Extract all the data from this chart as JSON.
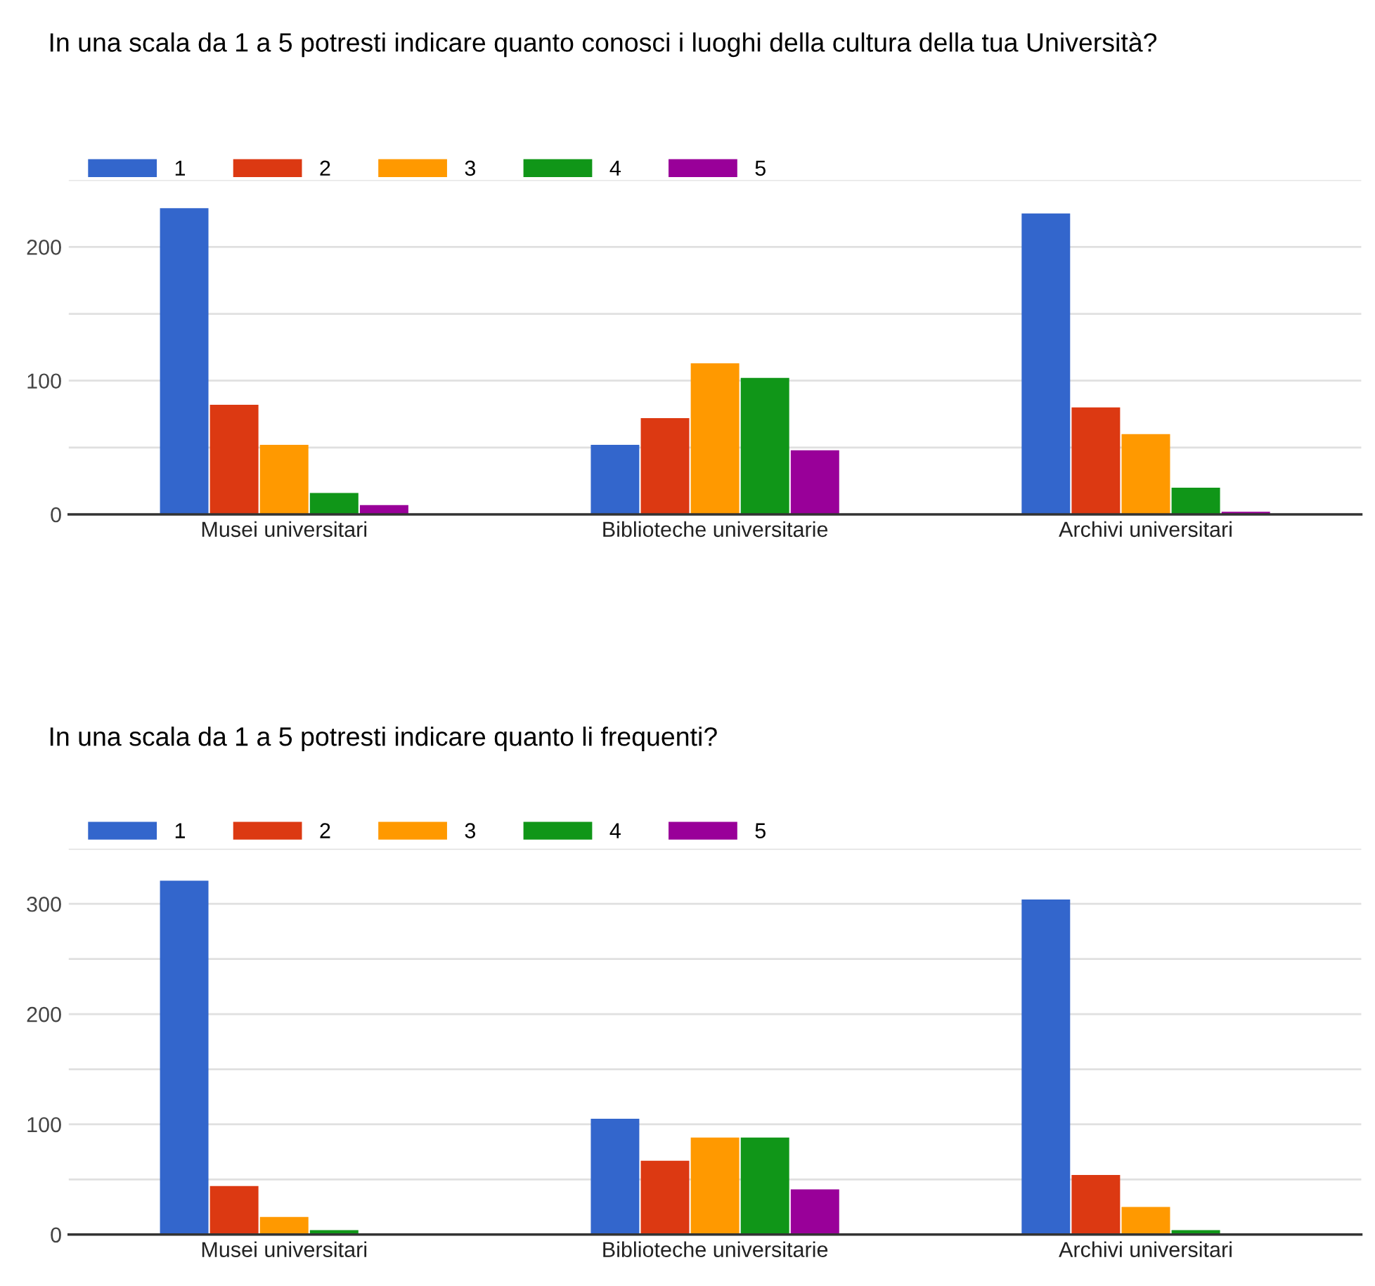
{
  "chart_data": [
    {
      "type": "bar",
      "title": "In una scala da 1 a 5 potresti indicare quanto conosci i luoghi della cultura della tua Università?",
      "categories": [
        "Musei universitari",
        "Biblioteche universitarie",
        "Archivi universitari"
      ],
      "series": [
        {
          "name": "1",
          "color": "#3366cc",
          "values": [
            229,
            52,
            225
          ]
        },
        {
          "name": "2",
          "color": "#dc3912",
          "values": [
            82,
            72,
            80
          ]
        },
        {
          "name": "3",
          "color": "#ff9900",
          "values": [
            52,
            113,
            60
          ]
        },
        {
          "name": "4",
          "color": "#109618",
          "values": [
            16,
            102,
            20
          ]
        },
        {
          "name": "5",
          "color": "#990099",
          "values": [
            7,
            48,
            2
          ]
        }
      ],
      "ylim": [
        0,
        250
      ],
      "yticks": [
        0,
        {
          "value": 50,
          "label": null
        },
        100,
        {
          "value": 150,
          "label": null
        },
        200,
        {
          "value": 250,
          "label": null
        }
      ],
      "grid": "y",
      "legend": "top left"
    },
    {
      "type": "bar",
      "title": "In una scala da 1 a 5 potresti indicare quanto li frequenti?",
      "categories": [
        "Musei universitari",
        "Biblioteche universitarie",
        "Archivi universitari"
      ],
      "series": [
        {
          "name": "1",
          "color": "#3366cc",
          "values": [
            321,
            105,
            304
          ]
        },
        {
          "name": "2",
          "color": "#dc3912",
          "values": [
            44,
            67,
            54
          ]
        },
        {
          "name": "3",
          "color": "#ff9900",
          "values": [
            16,
            88,
            25
          ]
        },
        {
          "name": "4",
          "color": "#109618",
          "values": [
            4,
            88,
            4
          ]
        },
        {
          "name": "5",
          "color": "#990099",
          "values": [
            1,
            41,
            null
          ]
        }
      ],
      "ylim": [
        0,
        350
      ],
      "yticks": [
        0,
        {
          "value": 50,
          "label": null
        },
        100,
        {
          "value": 150,
          "label": null
        },
        200,
        {
          "value": 250,
          "label": null
        },
        300,
        {
          "value": 350,
          "label": null
        }
      ],
      "grid": "y",
      "legend": "top left"
    }
  ]
}
